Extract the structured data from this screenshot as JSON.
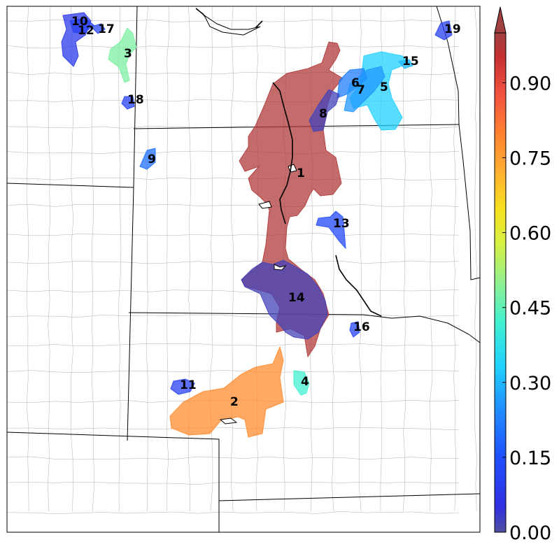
{
  "map": {
    "regions": [
      {
        "id": "1",
        "value": 0.98
      },
      {
        "id": "2",
        "value": 0.78
      },
      {
        "id": "3",
        "value": 0.48
      },
      {
        "id": "4",
        "value": 0.42
      },
      {
        "id": "5",
        "value": 0.33
      },
      {
        "id": "6",
        "value": 0.22
      },
      {
        "id": "7",
        "value": 0.26
      },
      {
        "id": "8",
        "value": 0.02
      },
      {
        "id": "9",
        "value": 0.2
      },
      {
        "id": "10",
        "value": 0.08
      },
      {
        "id": "11",
        "value": 0.1
      },
      {
        "id": "12",
        "value": 0.1
      },
      {
        "id": "13",
        "value": 0.13
      },
      {
        "id": "14",
        "value": 0.02
      },
      {
        "id": "15",
        "value": 0.3
      },
      {
        "id": "16",
        "value": 0.12
      },
      {
        "id": "17",
        "value": 0.12
      },
      {
        "id": "18",
        "value": 0.11
      },
      {
        "id": "19",
        "value": 0.1
      }
    ]
  },
  "colorbar": {
    "ticks": [
      "0.00",
      "0.15",
      "0.30",
      "0.45",
      "0.60",
      "0.75",
      "0.90"
    ],
    "min": 0.0,
    "max": 1.0,
    "extend": "max"
  }
}
